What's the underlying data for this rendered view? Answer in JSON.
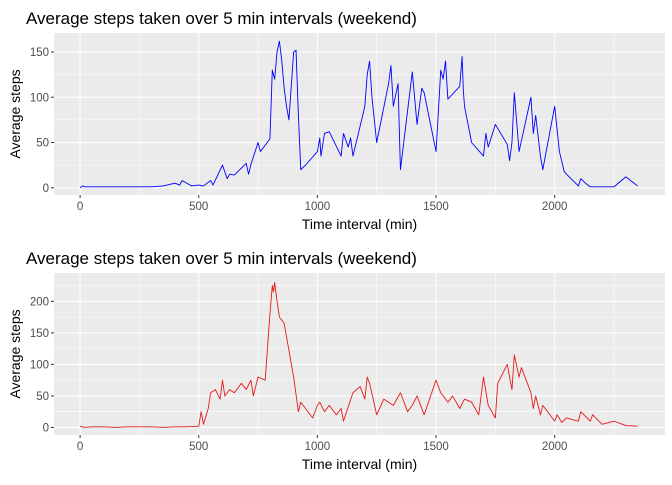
{
  "chart_data": [
    {
      "type": "line",
      "title": "Average steps taken over 5 min intervals (weekend)",
      "xlabel": "Time interval (min)",
      "ylabel": "Average steps",
      "xlim": [
        -110,
        2465
      ],
      "ylim": [
        -8,
        171
      ],
      "xticks": [
        0,
        500,
        1000,
        1500,
        2000
      ],
      "yticks": [
        0,
        50,
        100,
        150
      ],
      "grid": true,
      "color": "#0000ff",
      "series": [
        {
          "x": [
            0,
            10,
            20,
            50,
            100,
            150,
            200,
            250,
            300,
            350,
            400,
            420,
            430,
            450,
            470,
            500,
            520,
            550,
            560,
            600,
            620,
            630,
            650,
            700,
            710,
            720,
            750,
            760,
            800,
            810,
            820,
            830,
            840,
            850,
            860,
            870,
            880,
            900,
            910,
            920,
            930,
            950,
            1000,
            1010,
            1015,
            1030,
            1050,
            1100,
            1110,
            1130,
            1140,
            1150,
            1200,
            1210,
            1220,
            1230,
            1250,
            1300,
            1310,
            1320,
            1340,
            1350,
            1400,
            1420,
            1440,
            1450,
            1500,
            1520,
            1530,
            1540,
            1550,
            1600,
            1610,
            1615,
            1620,
            1650,
            1700,
            1710,
            1720,
            1750,
            1800,
            1810,
            1820,
            1830,
            1850,
            1900,
            1910,
            1920,
            1940,
            1950,
            2000,
            2010,
            2020,
            2040,
            2050,
            2100,
            2110,
            2130,
            2150,
            2200,
            2250,
            2300,
            2320,
            2350
          ],
          "y": [
            0,
            2,
            1,
            1,
            1,
            1,
            1,
            1,
            1,
            2,
            5,
            3,
            8,
            5,
            2,
            3,
            2,
            8,
            3,
            25,
            10,
            15,
            14,
            27,
            15,
            26,
            50,
            40,
            54,
            130,
            120,
            150,
            162,
            140,
            110,
            90,
            75,
            150,
            152,
            80,
            20,
            25,
            40,
            55,
            35,
            60,
            62,
            35,
            60,
            45,
            55,
            35,
            90,
            125,
            140,
            100,
            50,
            115,
            135,
            90,
            115,
            20,
            128,
            70,
            110,
            105,
            40,
            130,
            120,
            140,
            98,
            112,
            145,
            108,
            90,
            50,
            35,
            60,
            45,
            70,
            48,
            30,
            50,
            105,
            40,
            100,
            60,
            80,
            35,
            20,
            90,
            65,
            40,
            18,
            15,
            2,
            10,
            5,
            1,
            1,
            1,
            12,
            8,
            2
          ]
        }
      ]
    },
    {
      "type": "line",
      "title": "Average steps taken over 5 min intervals (weekend)",
      "xlabel": "Time interval (min)",
      "ylabel": "Average steps",
      "xlim": [
        -110,
        2465
      ],
      "ylim": [
        -12,
        245
      ],
      "xticks": [
        0,
        500,
        1000,
        1500,
        2000
      ],
      "yticks": [
        0,
        50,
        100,
        150,
        200
      ],
      "grid": true,
      "color": "#e41a1c",
      "series": [
        {
          "x": [
            0,
            20,
            50,
            100,
            150,
            200,
            250,
            300,
            350,
            400,
            450,
            500,
            510,
            520,
            540,
            550,
            570,
            590,
            600,
            610,
            630,
            650,
            680,
            700,
            720,
            730,
            750,
            780,
            800,
            810,
            815,
            820,
            830,
            840,
            850,
            860,
            900,
            920,
            930,
            950,
            980,
            1000,
            1010,
            1030,
            1050,
            1080,
            1100,
            1110,
            1150,
            1180,
            1200,
            1210,
            1220,
            1250,
            1280,
            1300,
            1320,
            1350,
            1380,
            1400,
            1420,
            1450,
            1500,
            1520,
            1550,
            1570,
            1600,
            1620,
            1650,
            1680,
            1700,
            1720,
            1750,
            1760,
            1800,
            1820,
            1830,
            1850,
            1860,
            1880,
            1900,
            1910,
            1920,
            1940,
            1950,
            2000,
            2010,
            2030,
            2050,
            2100,
            2110,
            2150,
            2160,
            2200,
            2250,
            2300,
            2350
          ],
          "y": [
            2,
            0,
            1,
            1,
            0,
            1,
            1,
            1,
            0,
            1,
            1,
            2,
            25,
            5,
            30,
            55,
            60,
            45,
            75,
            50,
            60,
            55,
            70,
            60,
            75,
            50,
            80,
            75,
            180,
            225,
            215,
            230,
            200,
            175,
            170,
            165,
            80,
            25,
            40,
            30,
            15,
            35,
            40,
            25,
            35,
            20,
            30,
            10,
            55,
            65,
            45,
            80,
            70,
            20,
            45,
            40,
            35,
            55,
            25,
            35,
            50,
            20,
            75,
            55,
            40,
            50,
            30,
            45,
            40,
            20,
            80,
            35,
            15,
            70,
            100,
            60,
            115,
            80,
            95,
            75,
            55,
            30,
            50,
            20,
            35,
            10,
            20,
            8,
            15,
            10,
            25,
            10,
            20,
            5,
            10,
            3,
            2
          ]
        }
      ]
    }
  ]
}
